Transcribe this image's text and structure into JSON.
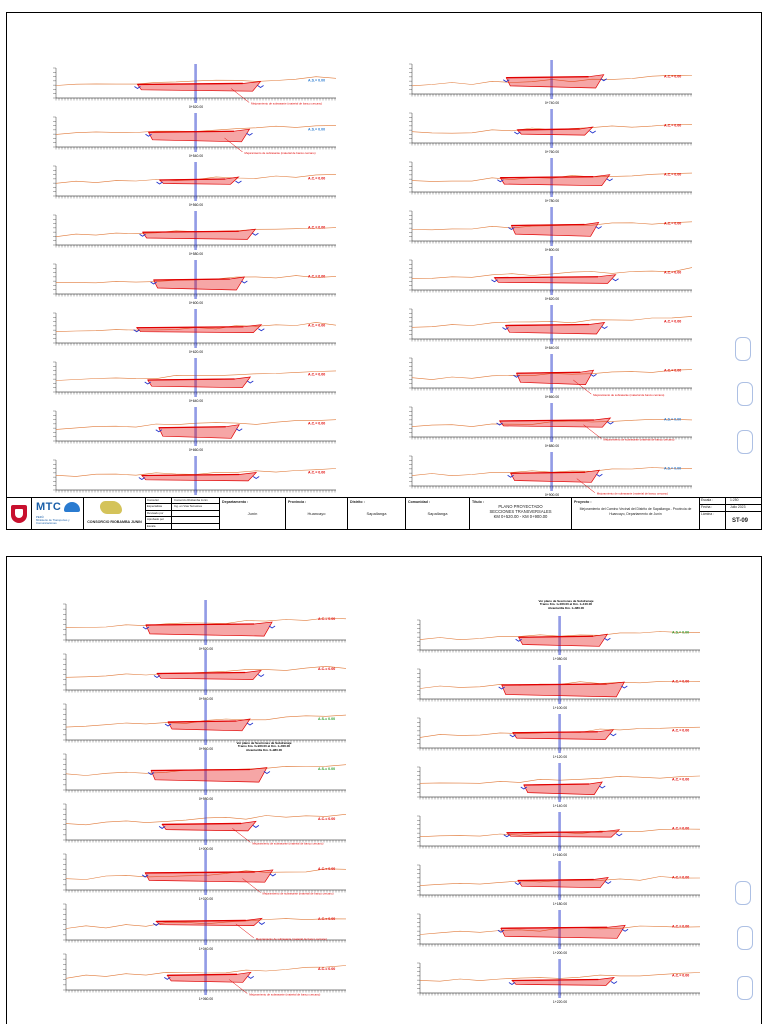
{
  "sheet_top": {
    "sections_left": [
      {
        "km": "0+520.00",
        "label": "A.S.= 0.00",
        "label_color": "#2a7bd0"
      },
      {
        "km": "0+540.00",
        "label": "A.S.= 0.00",
        "label_color": "#2a7bd0"
      },
      {
        "km": "0+560.00",
        "label": "A.C.= 0.00",
        "label_color": "#e00000"
      },
      {
        "km": "0+580.00",
        "label": "A.C.= 0.00",
        "label_color": "#e00000"
      },
      {
        "km": "0+600.00",
        "label": "A.C.= 0.00",
        "label_color": "#e00000"
      },
      {
        "km": "0+620.00",
        "label": "A.C.= 0.00",
        "label_color": "#e00000"
      },
      {
        "km": "0+640.00",
        "label": "A.C.= 0.00",
        "label_color": "#e00000"
      },
      {
        "km": "0+660.00",
        "label": "A.C.= 0.00",
        "label_color": "#e00000"
      },
      {
        "km": "0+680.00",
        "label": "A.C.= 0.00",
        "label_color": "#e00000"
      }
    ],
    "sections_right": [
      {
        "km": "0+740.00",
        "label": "A.C.= 0.00",
        "label_color": "#e00000"
      },
      {
        "km": "0+760.00",
        "label": "A.C.= 0.00",
        "label_color": "#e00000"
      },
      {
        "km": "0+780.00",
        "label": "A.C.= 0.00",
        "label_color": "#e00000"
      },
      {
        "km": "0+800.00",
        "label": "A.C.= 0.00",
        "label_color": "#e00000"
      },
      {
        "km": "0+820.00",
        "label": "A.C.= 0.00",
        "label_color": "#e00000"
      },
      {
        "km": "0+840.00",
        "label": "A.C.= 0.00",
        "label_color": "#e00000"
      },
      {
        "km": "0+860.00",
        "label": "A.C.= 0.00",
        "label_color": "#e00000"
      },
      {
        "km": "0+880.00",
        "label": "A.S.= 0.00",
        "label_color": "#2a7bd0"
      },
      {
        "km": "0+900.00",
        "label": "A.S.= 0.00",
        "label_color": "#2a7bd0"
      }
    ],
    "annotation": "Mejoramiento de subrasante (material de banco cercano)",
    "title_block": {
      "org": "MTC",
      "org_sub": "PERÚ\nMinisterio de Transportes y Comunicaciones",
      "consortium": "CONSORCIO RIOBAMBA JUNIN",
      "info_rows": [
        [
          "Consultor",
          "Consorcio Riobamba Junin"
        ],
        [
          "Especialista",
          "Ing. en Vías Terrestres"
        ],
        [
          "Revisado por",
          ""
        ],
        [
          "Aprobado por",
          ""
        ],
        [
          "Escala",
          ""
        ],
        [
          "Fecha",
          ""
        ]
      ],
      "departamento_label": "Departamento :",
      "departamento": "Junín",
      "provincia_label": "Provincia :",
      "provincia": "Huancayo",
      "distrito_label": "Distrito :",
      "distrito": "Sapallanga",
      "comunidad_label": "Comunidad :",
      "comunidad": "Sapallanga",
      "titulo_label": "Título :",
      "titulo": "PLANO PROYECTADO\nSECCIONES TRANSVERSALES\nKM 0+520.00 - KM 0+900.00",
      "proyecto_label": "Proyecto :",
      "proyecto": "Mejoramiento del Camino Vecinal del Distrito de Sapallanga - Provincia de Huancayo, Departamento de Junín",
      "escala_label": "Escala :",
      "escala": "1:250",
      "fecha_label": "Fecha :",
      "fecha": "Julio 2023",
      "lamina_label": "Lámina :",
      "lamina": "ST-09"
    }
  },
  "sheet_bottom": {
    "sections_left": [
      {
        "km": "0+920.00",
        "label": "A.C.= 0.00",
        "label_color": "#e00000"
      },
      {
        "km": "0+940.00",
        "label": "A.C.= 0.00",
        "label_color": "#e00000"
      },
      {
        "km": "0+960.00",
        "label": "A.S.= 0.00",
        "label_color": "#2a9a2a"
      },
      {
        "km": "0+980.00",
        "label": "A.S.= 0.00",
        "label_color": "#2a9a2a"
      },
      {
        "km": "1+000.00",
        "label": "A.C.= 0.00",
        "label_color": "#e00000"
      },
      {
        "km": "1+020.00",
        "label": "A.C.= 0.00",
        "label_color": "#e00000"
      },
      {
        "km": "1+040.00",
        "label": "A.C.= 0.00",
        "label_color": "#e00000"
      },
      {
        "km": "1+060.00",
        "label": "A.C.= 0.00",
        "label_color": "#e00000"
      }
    ],
    "sections_right": [
      {
        "km": "1+080.00",
        "label": "A.S.= 0.00",
        "label_color": "#2a9a2a"
      },
      {
        "km": "1+100.00",
        "label": "A.C.= 0.00",
        "label_color": "#e00000"
      },
      {
        "km": "1+120.00",
        "label": "A.C.= 0.00",
        "label_color": "#e00000"
      },
      {
        "km": "1+140.00",
        "label": "A.C.= 0.00",
        "label_color": "#e00000"
      },
      {
        "km": "1+160.00",
        "label": "A.C.= 0.00",
        "label_color": "#e00000"
      },
      {
        "km": "1+180.00",
        "label": "A.C.= 0.00",
        "label_color": "#e00000"
      },
      {
        "km": "1+200.00",
        "label": "A.C.= 0.00",
        "label_color": "#e00000"
      },
      {
        "km": "1+220.00",
        "label": "A.C.= 0.00",
        "label_color": "#e00000"
      }
    ],
    "annotation": "Mejoramiento de subrasante (material de banco cercano)",
    "note_left": "Ver plano de Secciones de Subdrenaje\nTramo Km. 0+960.00 al Km. 1+000.00\nAlcantarilla Km. 0+980.00",
    "note_right": "Ver plano de Secciones de Subdrenaje\nTramo Km. 1+060.00 al Km. 1+100.00\nAlcantarilla Km. 1+080.00"
  },
  "colors": {
    "terrain": "#e07a3a",
    "cut": "#e00000",
    "axis": "#2233cc",
    "grid": "#000000"
  }
}
